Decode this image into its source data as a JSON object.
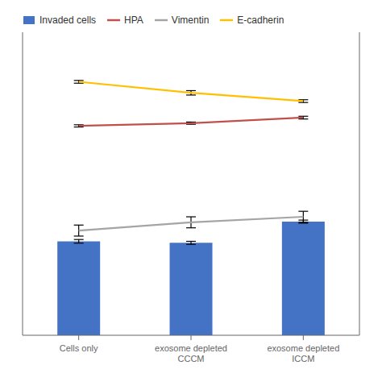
{
  "chart_data": {
    "type": "bar",
    "categories": [
      "Cells only",
      "exosome depleted CCCM",
      "exosome depleted ICCM"
    ],
    "series": [
      {
        "name": "Invaded cells",
        "type": "bar",
        "color": "#4472C4",
        "values": [
          62,
          61,
          75
        ],
        "errors": [
          1.2,
          1.0,
          1.0
        ]
      },
      {
        "name": "HPA",
        "type": "line",
        "axis": "y2",
        "color": "#C0504D",
        "values": [
          76,
          77,
          79
        ],
        "errors": [
          0.4,
          0.4,
          0.5
        ]
      },
      {
        "name": "Vimentin",
        "type": "line",
        "axis": "y2",
        "color": "#A5A5A5",
        "values": [
          38,
          41,
          43
        ],
        "errors": [
          2.0,
          2.0,
          2.0
        ]
      },
      {
        "name": "E-cadherin",
        "type": "line",
        "axis": "y2",
        "color": "#FFC000",
        "values": [
          92,
          88,
          85
        ],
        "errors": [
          0.5,
          0.8,
          0.5
        ]
      }
    ],
    "ylim": [
      0,
      200
    ],
    "y2lim": [
      0,
      110
    ],
    "tick_labels": "x",
    "grid": false,
    "legend": "top"
  }
}
